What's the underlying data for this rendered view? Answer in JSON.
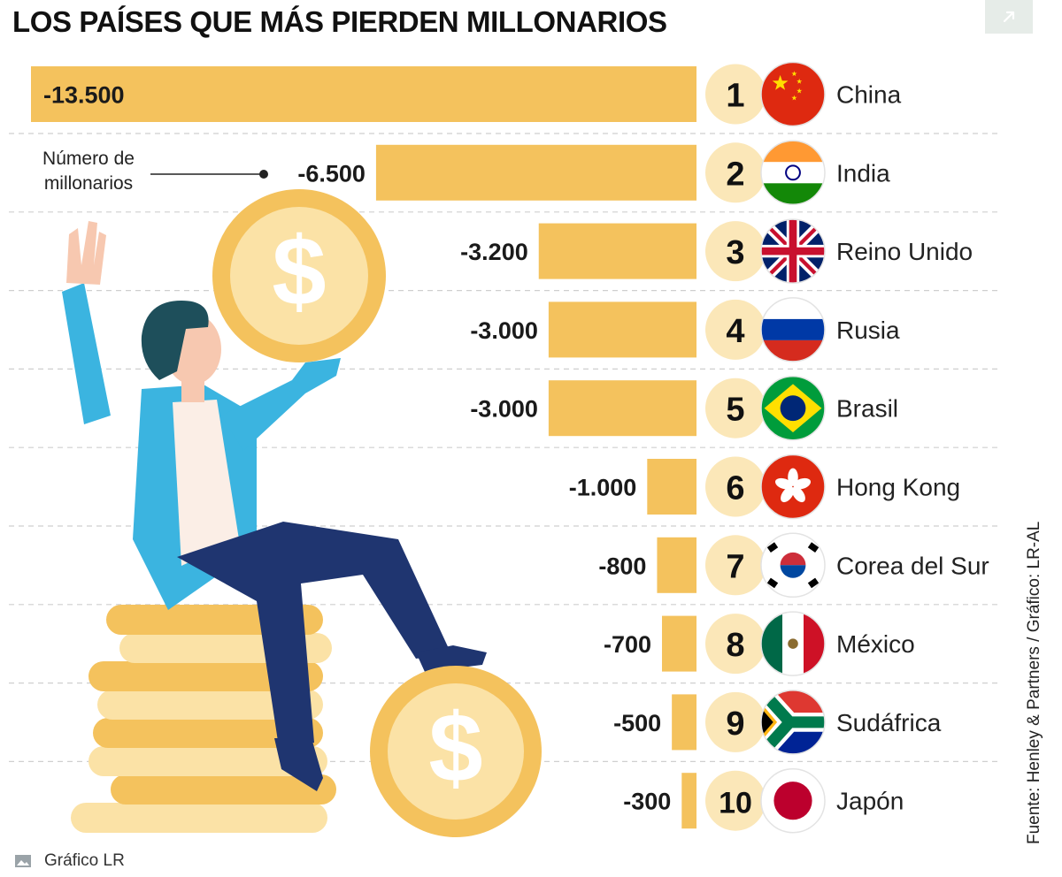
{
  "chart_data": {
    "type": "bar",
    "title": "LOS PAÍSES QUE MÁS PIERDEN MILLONARIOS",
    "annotation": "Número de millonarios",
    "annotation_lines": [
      "Número de",
      "millonarios"
    ],
    "source": "Fuente: Henley & Partners / Gráfico: LR-AL",
    "bar_color": "#f4c25d",
    "rows": [
      {
        "rank": "1",
        "country": "China",
        "value": -13500,
        "label": "-13.500",
        "flag": "china-flag"
      },
      {
        "rank": "2",
        "country": "India",
        "value": -6500,
        "label": "-6.500",
        "flag": "india-flag"
      },
      {
        "rank": "3",
        "country": "Reino Unido",
        "value": -3200,
        "label": "-3.200",
        "flag": "uk-flag"
      },
      {
        "rank": "4",
        "country": "Rusia",
        "value": -3000,
        "label": "-3.000",
        "flag": "russia-flag"
      },
      {
        "rank": "5",
        "country": "Brasil",
        "value": -3000,
        "label": "-3.000",
        "flag": "brazil-flag"
      },
      {
        "rank": "6",
        "country": "Hong Kong",
        "value": -1000,
        "label": "-1.000",
        "flag": "hong-kong-flag"
      },
      {
        "rank": "7",
        "country": "Corea del Sur",
        "value": -800,
        "label": "-800",
        "flag": "south-korea-flag"
      },
      {
        "rank": "8",
        "country": "México",
        "value": -700,
        "label": "-700",
        "flag": "mexico-flag"
      },
      {
        "rank": "9",
        "country": "Sudáfrica",
        "value": -500,
        "label": "-500",
        "flag": "south-africa-flag"
      },
      {
        "rank": "10",
        "country": "Japón",
        "value": -300,
        "label": "-300",
        "flag": "japan-flag"
      }
    ]
  },
  "caption": "Gráfico LR",
  "icons": {
    "expand": "expand-arrow-icon",
    "image": "image-icon",
    "illustration": "man-with-coins-illustration"
  },
  "colors": {
    "bar": "#f4c25d",
    "rank_circle": "#fbe7b8",
    "coin_outer": "#f4c25d",
    "coin_inner": "#fbe2a6",
    "jacket": "#3bb4e0",
    "trousers": "#1f3570"
  }
}
